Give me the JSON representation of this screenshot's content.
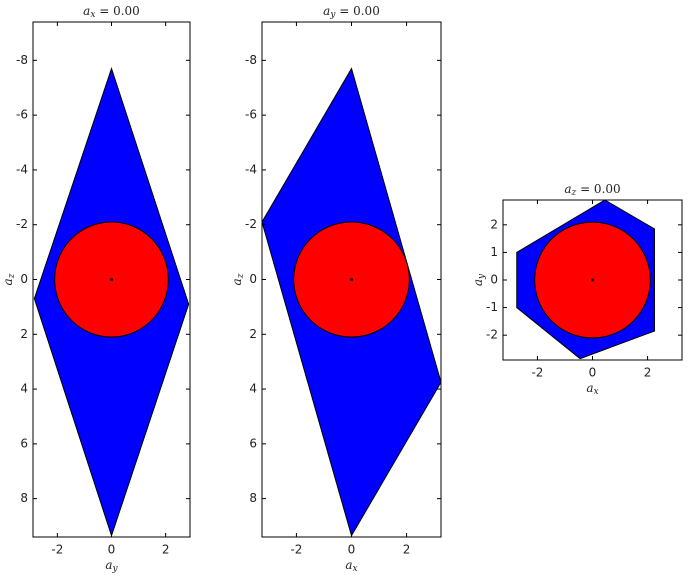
{
  "chart_data": [
    {
      "type": "polygon",
      "title": "a_x = 0.00",
      "xlabel": "a_y",
      "ylabel": "a_z",
      "xlim": [
        -2.9,
        2.9
      ],
      "ylim": [
        -9.4,
        9.4
      ],
      "y_inverted": true,
      "xticks": [
        -2,
        0,
        2
      ],
      "yticks": [
        -8,
        -6,
        -4,
        -2,
        0,
        2,
        4,
        6,
        8
      ],
      "polygon": {
        "x": [
          0,
          2.85,
          0,
          -2.85
        ],
        "y": [
          -7.7,
          0.9,
          9.35,
          0.7
        ],
        "color": "#0000ff"
      },
      "circle": {
        "x": 0,
        "y": 0,
        "r": 2.1,
        "color": "#ff0000"
      },
      "center": {
        "x": 0,
        "y": 0
      }
    },
    {
      "type": "polygon",
      "title": "a_y = 0.00",
      "xlabel": "a_x",
      "ylabel": "a_z",
      "xlim": [
        -3.25,
        3.25
      ],
      "ylim": [
        -9.4,
        9.4
      ],
      "y_inverted": true,
      "xticks": [
        -2,
        0,
        2
      ],
      "yticks": [
        -8,
        -6,
        -4,
        -2,
        0,
        2,
        4,
        6,
        8
      ],
      "polygon": {
        "x": [
          0,
          3.25,
          0,
          -3.25
        ],
        "y": [
          -7.7,
          3.75,
          9.35,
          -2.1
        ],
        "color": "#0000ff"
      },
      "circle": {
        "x": 0,
        "y": 0,
        "r": 2.1,
        "color": "#ff0000"
      },
      "center": {
        "x": 0,
        "y": 0
      }
    },
    {
      "type": "polygon",
      "title": "a_z = 0.00",
      "xlabel": "a_x",
      "ylabel": "a_y",
      "xlim": [
        -3.25,
        3.25
      ],
      "ylim": [
        -2.9,
        2.9
      ],
      "y_inverted": false,
      "xticks": [
        -2,
        0,
        2
      ],
      "yticks": [
        -2,
        -1,
        0,
        1,
        2
      ],
      "polygon": {
        "x": [
          -2.75,
          -2.75,
          -0.45,
          2.25,
          2.25,
          0.45
        ],
        "y": [
          1.0,
          -1.0,
          -2.85,
          -1.85,
          1.85,
          2.9
        ],
        "color": "#0000ff"
      },
      "circle": {
        "x": 0,
        "y": 0,
        "r": 2.1,
        "color": "#ff0000"
      },
      "center": {
        "x": 0,
        "y": 0
      }
    }
  ]
}
